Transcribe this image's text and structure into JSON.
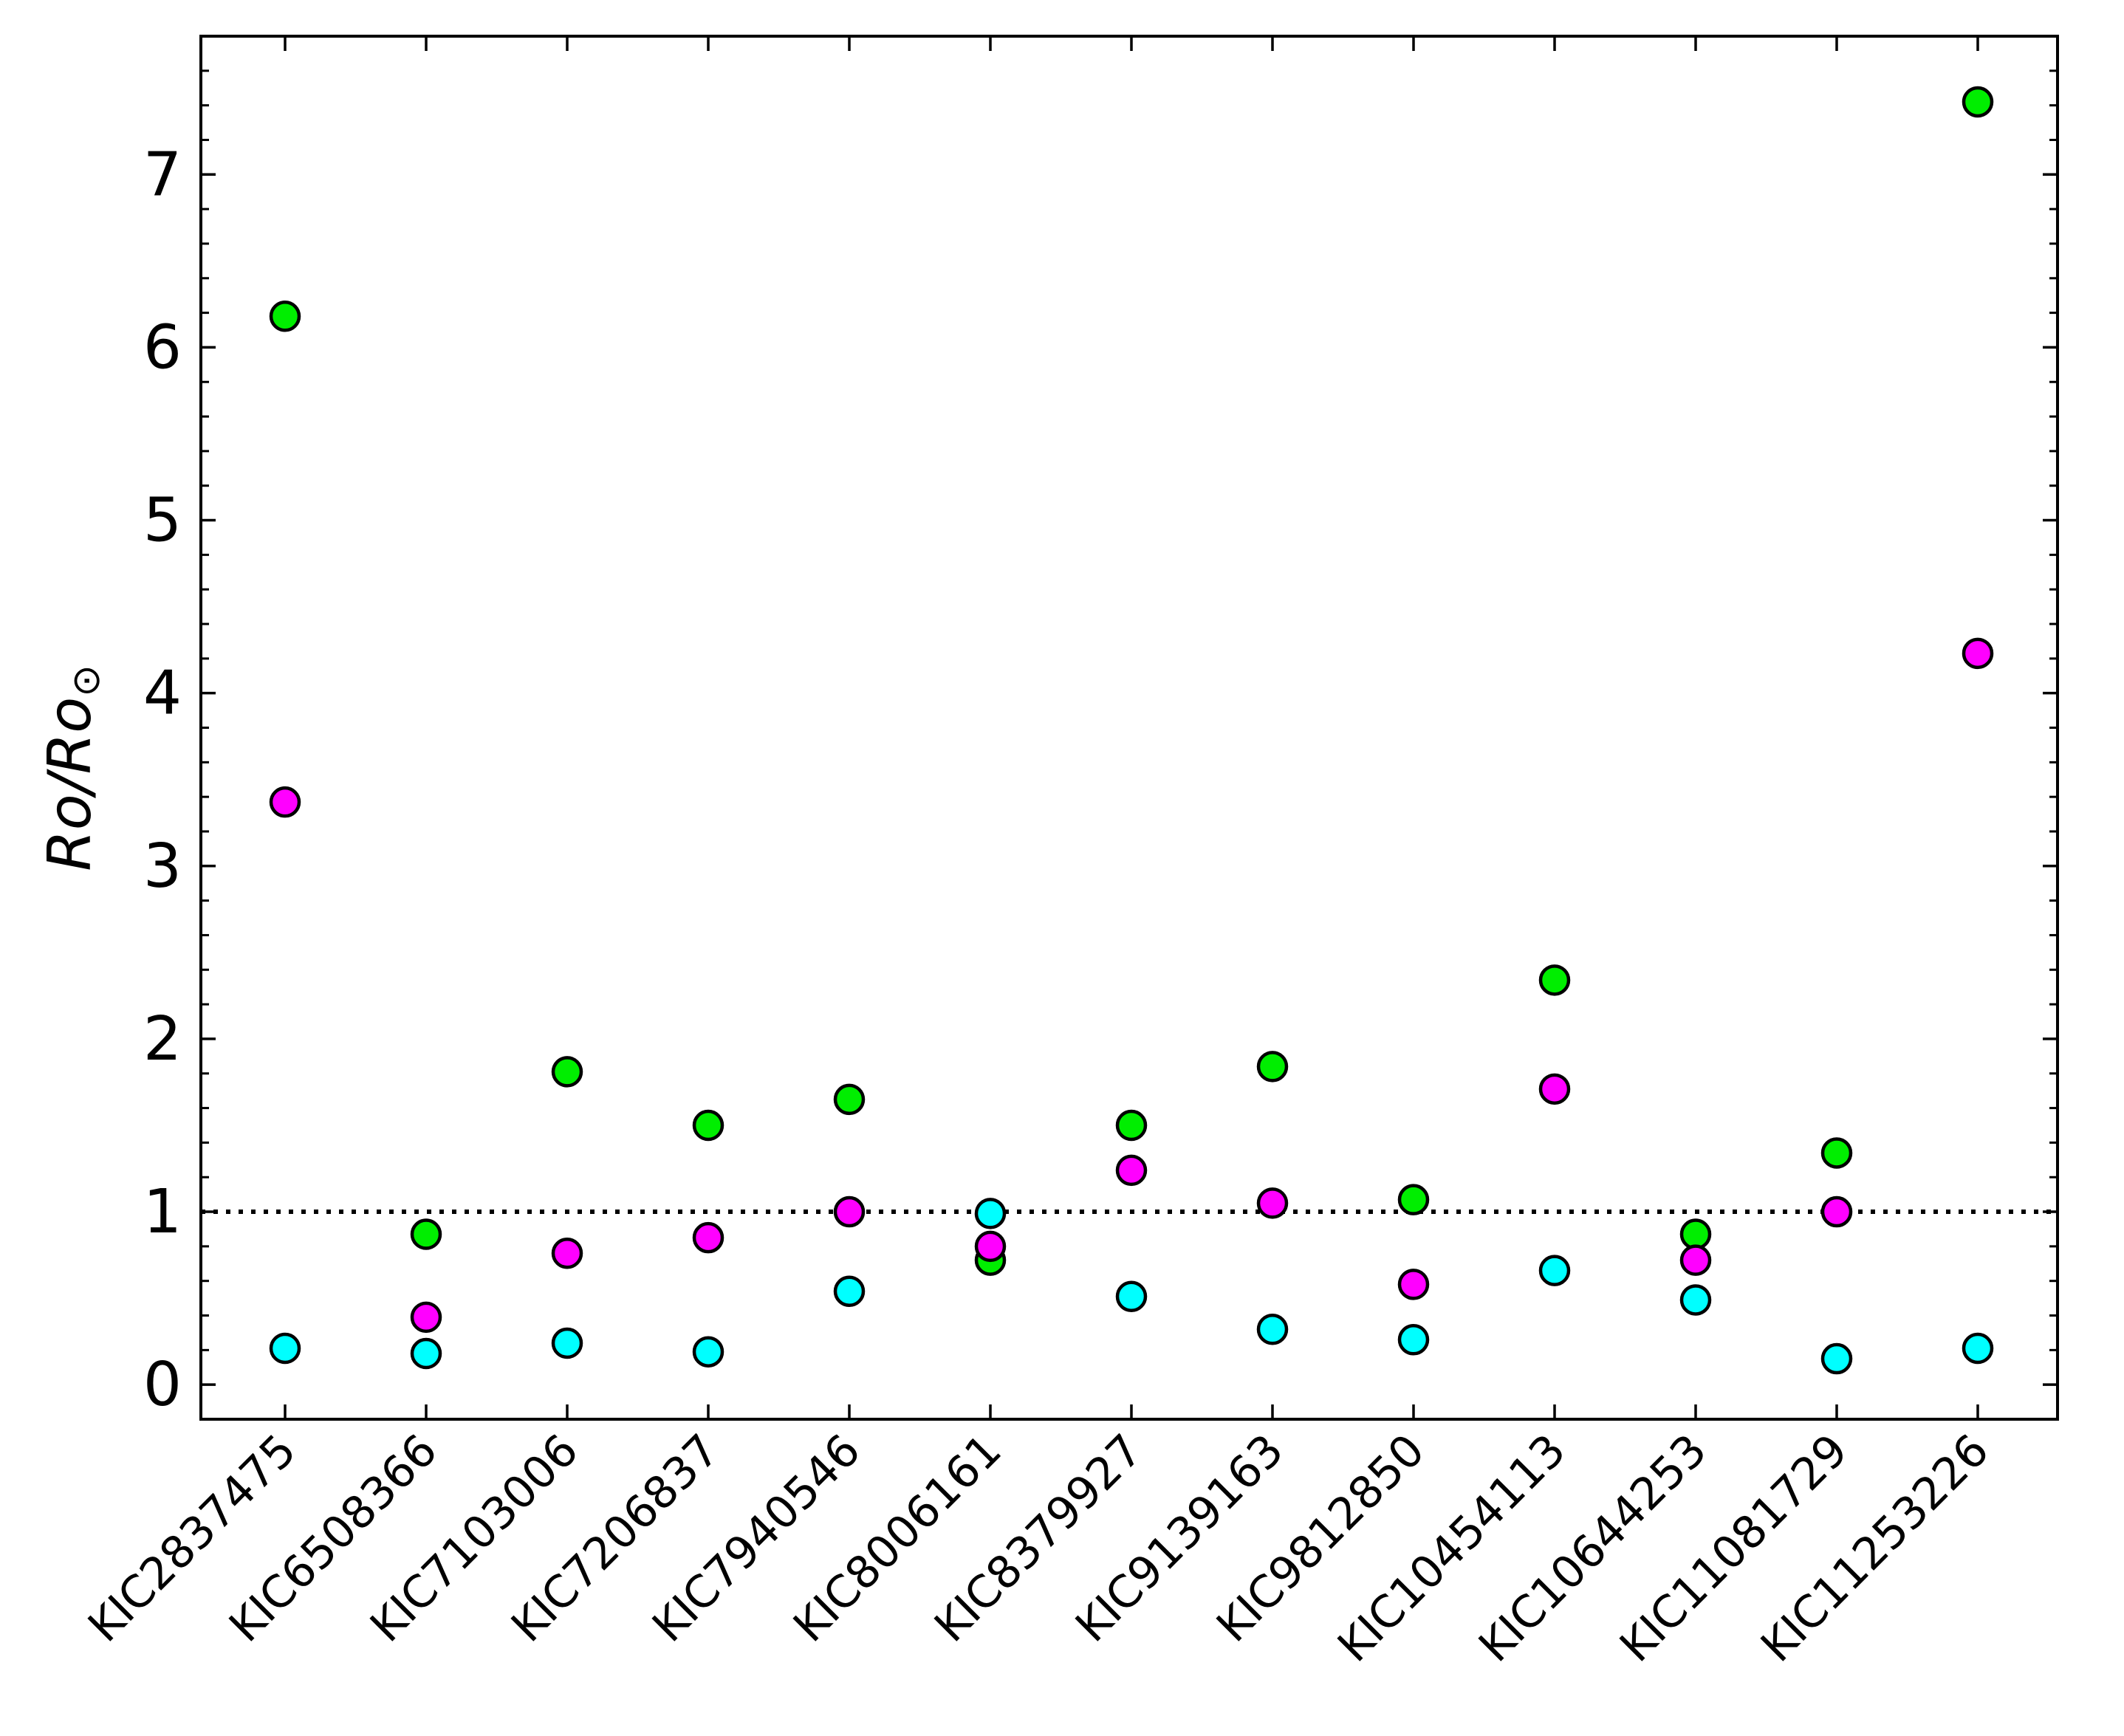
{
  "chart_data": {
    "type": "scatter",
    "title": "",
    "xlabel": "",
    "ylabel": "Ro/Ro",
    "ylabel_subscript_symbol": "⊙",
    "ylim": [
      -0.2,
      7.8
    ],
    "y_ticks": [
      0,
      1,
      2,
      3,
      4,
      5,
      6,
      7
    ],
    "y_tick_labels": [
      "0",
      "1",
      "2",
      "3",
      "4",
      "5",
      "6",
      "7"
    ],
    "categories": [
      "KIC2837475",
      "KIC6508366",
      "KIC7103006",
      "KIC7206837",
      "KIC7940546",
      "KIC8006161",
      "KIC8379927",
      "KIC9139163",
      "KIC9812850",
      "KIC10454113",
      "KIC10644253",
      "KIC11081729",
      "KIC11253226"
    ],
    "reference_line": {
      "y": 1,
      "style": "dotted",
      "color": "#000000"
    },
    "grid": false,
    "legend": "none",
    "series": [
      {
        "color": "#00ee00",
        "values": [
          6.18,
          0.87,
          1.81,
          1.5,
          1.65,
          0.72,
          1.5,
          1.84,
          1.07,
          2.34,
          0.87,
          1.34,
          7.42
        ]
      },
      {
        "color": "#ff00ff",
        "values": [
          3.37,
          0.39,
          0.76,
          0.85,
          1.0,
          0.8,
          1.24,
          1.05,
          0.58,
          1.71,
          0.72,
          1.0,
          4.23
        ]
      },
      {
        "color": "#00ffff",
        "values": [
          0.21,
          0.18,
          0.24,
          0.19,
          0.54,
          0.99,
          0.51,
          0.32,
          0.26,
          0.66,
          0.49,
          0.15,
          0.21
        ]
      }
    ]
  }
}
